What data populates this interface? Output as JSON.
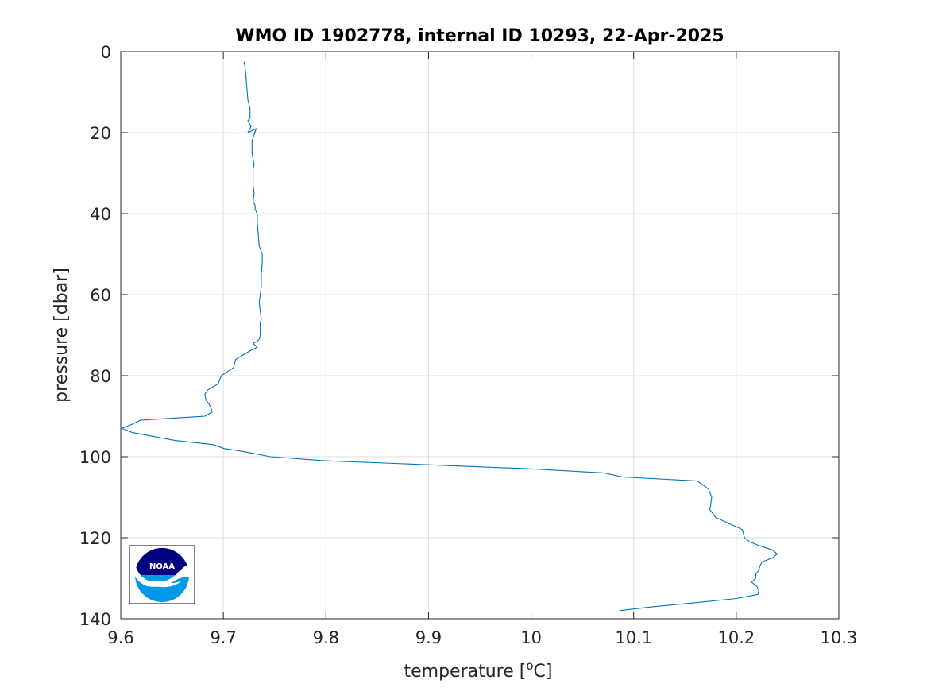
{
  "chart_data": {
    "type": "line",
    "title": "WMO ID 1902778, internal ID 10293, 22-Apr-2025",
    "xlabel": "temperature [",
    "xlabel_sup": "o",
    "xlabel_suffix": "C]",
    "ylabel": "pressure [dbar]",
    "xlim": [
      9.6,
      10.3
    ],
    "ylim": [
      0,
      140
    ],
    "y_reversed": true,
    "grid": true,
    "x_ticks": [
      9.6,
      9.7,
      9.8,
      9.9,
      10,
      10.1,
      10.2,
      10.3
    ],
    "x_tick_labels": [
      "9.6",
      "9.7",
      "9.8",
      "9.9",
      "10",
      "10.1",
      "10.2",
      "10.3"
    ],
    "y_ticks": [
      0,
      20,
      40,
      60,
      80,
      100,
      120,
      140
    ],
    "y_tick_labels": [
      "0",
      "20",
      "40",
      "60",
      "80",
      "100",
      "120",
      "140"
    ],
    "colors": {
      "line": "#0072bd",
      "grid": "#dfdfdf",
      "axes": "#262626"
    },
    "series": [
      {
        "x": [
          9.72,
          9.721,
          9.722,
          9.723,
          9.724,
          9.726,
          9.726,
          9.724,
          9.727,
          9.724,
          9.732,
          9.728,
          9.728,
          9.73,
          9.729,
          9.729,
          9.729,
          9.729,
          9.73,
          9.729,
          9.731,
          9.731,
          9.733,
          9.733,
          9.735,
          9.738,
          9.738,
          9.737,
          9.737,
          9.735,
          9.737,
          9.736,
          9.736,
          9.736,
          9.736,
          9.735,
          9.733,
          9.729,
          9.733,
          9.725,
          9.712,
          9.71,
          9.698,
          9.695,
          9.685,
          9.682,
          9.683,
          9.686,
          9.688,
          9.689,
          9.682,
          9.619,
          9.611,
          9.601,
          9.611,
          9.653,
          9.69,
          9.701,
          9.715,
          9.746,
          9.799,
          9.9,
          10.0,
          10.071,
          10.089,
          10.162,
          10.173,
          10.176,
          10.175,
          10.174,
          10.18,
          10.206,
          10.208,
          10.213,
          10.223,
          10.235,
          10.24,
          10.235,
          10.225,
          10.223,
          10.222,
          10.219,
          10.219,
          10.215,
          10.22,
          10.222,
          10.221,
          10.2,
          10.162,
          10.12,
          10.086
        ],
        "y": [
          2.5,
          3.5,
          6,
          9,
          12,
          14,
          16.5,
          17,
          18.5,
          20,
          19,
          22,
          25,
          28,
          29,
          30,
          31,
          33,
          35,
          37,
          38,
          39,
          40,
          42,
          48,
          50,
          52,
          55,
          58,
          62,
          66,
          67,
          68,
          69,
          70,
          71,
          71.5,
          72,
          73,
          74,
          76,
          78,
          80,
          82,
          83.5,
          84.5,
          86,
          87,
          88,
          89,
          90,
          91,
          92,
          93,
          94,
          96,
          97,
          98,
          98.5,
          100,
          101,
          102,
          103,
          104,
          105,
          106,
          108,
          110,
          112,
          113,
          115,
          118,
          120,
          121,
          122,
          123,
          124,
          125,
          126,
          127,
          128,
          129,
          130,
          131,
          132,
          133,
          134,
          135,
          136,
          137,
          138
        ]
      }
    ]
  }
}
